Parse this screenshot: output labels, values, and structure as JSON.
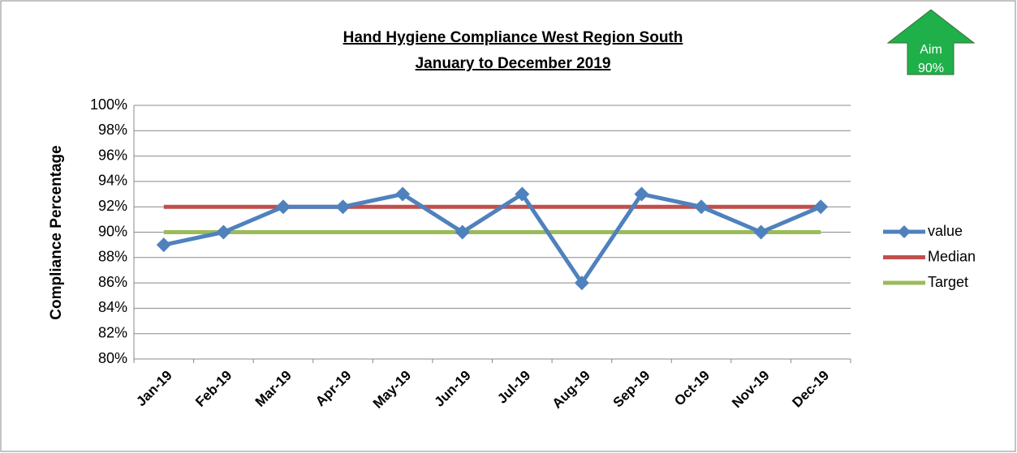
{
  "chart_data": {
    "type": "line",
    "title": "Hand Hygiene Compliance West Region South",
    "subtitle": "January to December  2019",
    "y_label": "Compliance Percentage",
    "annotation": [
      "Aim",
      "90%"
    ],
    "categories": [
      "Jan-19",
      "Feb-19",
      "Mar-19",
      "Apr-19",
      "May-19",
      "Jun-19",
      "Jul-19",
      "Aug-19",
      "Sep-19",
      "Oct-19",
      "Nov-19",
      "Dec-19"
    ],
    "series": [
      {
        "name": "value",
        "color": "#4f81bd",
        "marker": "diamond",
        "values": [
          89,
          90,
          92,
          92,
          93,
          90,
          93,
          86,
          93,
          92,
          90,
          92
        ]
      },
      {
        "name": "Median",
        "color": "#c0504d",
        "values": [
          92,
          92,
          92,
          92,
          92,
          92,
          92,
          92,
          92,
          92,
          92,
          92
        ]
      },
      {
        "name": "Target",
        "color": "#9bbb59",
        "values": [
          90,
          90,
          90,
          90,
          90,
          90,
          90,
          90,
          90,
          90,
          90,
          90
        ]
      }
    ],
    "ylim": [
      80,
      100
    ],
    "yticks": [
      {
        "value": 80,
        "label": "80%"
      },
      {
        "value": 82,
        "label": "82%"
      },
      {
        "value": 84,
        "label": "84%"
      },
      {
        "value": 86,
        "label": "86%"
      },
      {
        "value": 88,
        "label": "88%"
      },
      {
        "value": 90,
        "label": "90%"
      },
      {
        "value": 92,
        "label": "92%"
      },
      {
        "value": 94,
        "label": "94%"
      },
      {
        "value": 96,
        "label": "96%"
      },
      {
        "value": 98,
        "label": "98%"
      },
      {
        "value": 100,
        "label": "100%"
      }
    ],
    "grid": true,
    "legend": "right"
  }
}
